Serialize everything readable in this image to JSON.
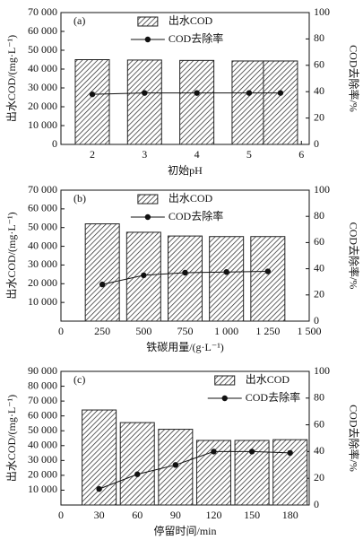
{
  "chart_data": [
    {
      "type": "bar",
      "panel_label": "(a)",
      "x_label": "初始pH",
      "y_label": "出水COD/(mg·L⁻¹)",
      "y2_label": "COD去除率/%",
      "x": [
        2,
        3,
        4,
        5,
        5.6
      ],
      "xlim": [
        1.4,
        6.15
      ],
      "xticks": [
        2,
        3,
        4,
        5,
        6
      ],
      "ylim": [
        0,
        70000
      ],
      "yticks": [
        0,
        {
          "value": 10000,
          "label": "10 000"
        },
        {
          "value": 20000,
          "label": "20 000"
        },
        {
          "value": 30000,
          "label": "30 000"
        },
        {
          "value": 40000,
          "label": "40 000"
        },
        {
          "value": 50000,
          "label": "50 000"
        },
        {
          "value": 60000,
          "label": "60 000"
        },
        {
          "value": 70000,
          "label": "70 000"
        }
      ],
      "y2lim": [
        0,
        100
      ],
      "y2ticks": [
        0,
        20,
        40,
        60,
        80,
        100
      ],
      "legend": "upper center",
      "series": [
        {
          "name": "出水COD",
          "type": "bar",
          "color": "#222222",
          "values": [
            45000,
            44800,
            44600,
            44300,
            44300
          ]
        },
        {
          "name": "COD去除率",
          "type": "line",
          "axis": "y2",
          "color": "#111111",
          "values": [
            38,
            39,
            39,
            39,
            39
          ]
        }
      ]
    },
    {
      "type": "bar",
      "panel_label": "(b)",
      "x_label": "铁碳用量/(g·L⁻¹)",
      "y_label": "出水COD/(mg·L⁻¹)",
      "y2_label": "COD去除率/%",
      "x": [
        250,
        500,
        750,
        1000,
        1250
      ],
      "xlim": [
        0,
        1500
      ],
      "xticks": [
        0,
        250,
        500,
        750,
        {
          "value": 1000,
          "label": "1 000"
        },
        {
          "value": 1250,
          "label": "1 250"
        },
        {
          "value": 1500,
          "label": "1 500"
        }
      ],
      "ylim": [
        0,
        70000
      ],
      "yticks": [
        {
          "value": 10000,
          "label": "10 000"
        },
        {
          "value": 20000,
          "label": "20 000"
        },
        {
          "value": 30000,
          "label": "30 000"
        },
        {
          "value": 40000,
          "label": "40 000"
        },
        {
          "value": 50000,
          "label": "50 000"
        },
        {
          "value": 60000,
          "label": "60 000"
        },
        {
          "value": 70000,
          "label": "70 000"
        }
      ],
      "y2lim": [
        0,
        100
      ],
      "y2ticks": [
        0,
        20,
        40,
        60,
        80,
        100
      ],
      "legend": "upper center",
      "series": [
        {
          "name": "出水COD",
          "type": "bar",
          "color": "#222222",
          "values": [
            52000,
            47500,
            45500,
            45200,
            45200
          ]
        },
        {
          "name": "COD去除率",
          "type": "line",
          "axis": "y2",
          "color": "#111111",
          "values": [
            28,
            35,
            37,
            37.5,
            38
          ]
        }
      ]
    },
    {
      "type": "bar",
      "panel_label": "(c)",
      "x_label": "停留时间/min",
      "y_label": "出水COD/(mg·L⁻¹)",
      "y2_label": "COD去除率/%",
      "x": [
        30,
        60,
        90,
        120,
        150,
        180
      ],
      "xlim": [
        0,
        195
      ],
      "xticks": [
        0,
        30,
        60,
        90,
        120,
        150,
        180
      ],
      "ylim": [
        0,
        90000
      ],
      "yticks": [
        {
          "value": 10000,
          "label": "10 000"
        },
        {
          "value": 20000,
          "label": "20 000"
        },
        {
          "value": 30000,
          "label": "30 000"
        },
        {
          "value": 40000,
          "label": "40 000"
        },
        {
          "value": 50000,
          "label": "50 000"
        },
        {
          "value": 60000,
          "label": "60 000"
        },
        {
          "value": 70000,
          "label": "70 000"
        },
        {
          "value": 80000,
          "label": "80 000"
        },
        {
          "value": 90000,
          "label": "90 000"
        }
      ],
      "y2lim": [
        0,
        100
      ],
      "y2ticks": [
        0,
        20,
        40,
        60,
        80,
        100
      ],
      "legend": "upper right",
      "series": [
        {
          "name": "出水COD",
          "type": "bar",
          "color": "#222222",
          "values": [
            64000,
            55500,
            51000,
            43500,
            43500,
            44000
          ]
        },
        {
          "name": "COD去除率",
          "type": "line",
          "axis": "y2",
          "color": "#111111",
          "values": [
            12,
            23,
            30,
            40,
            40,
            39
          ]
        }
      ]
    }
  ]
}
